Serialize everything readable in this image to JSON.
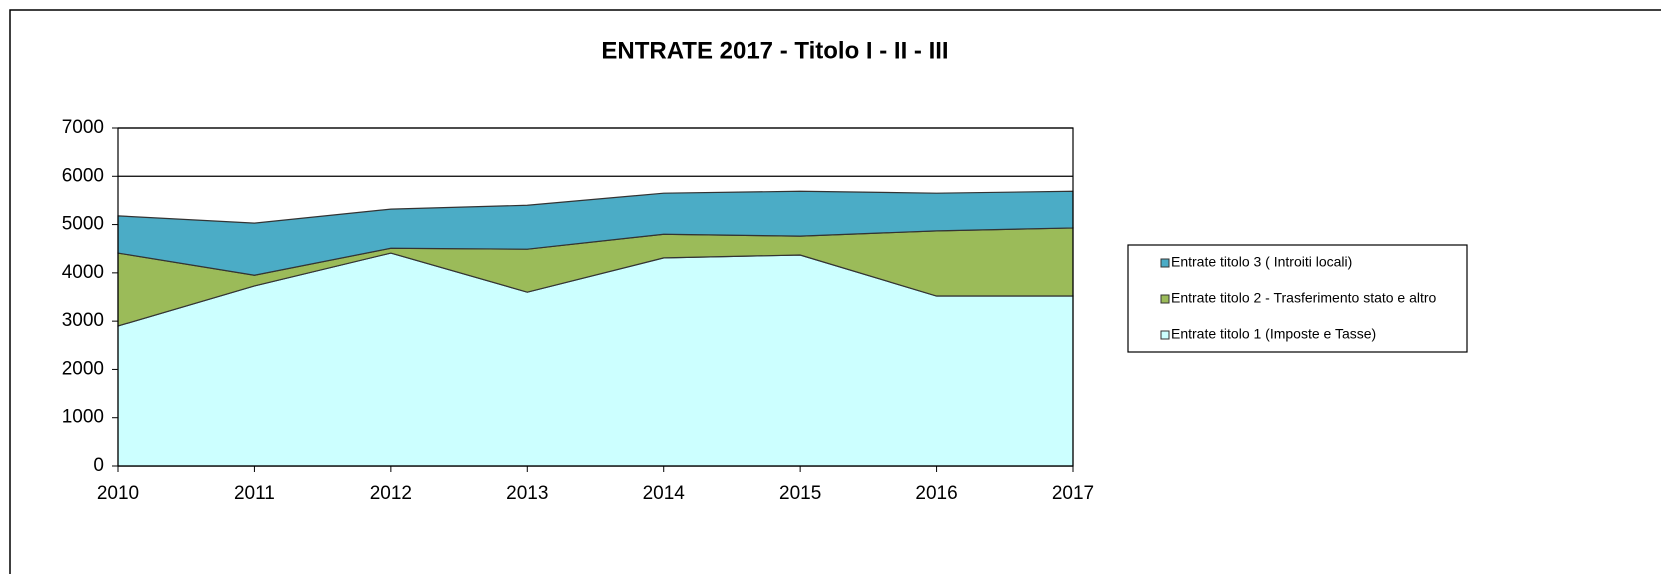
{
  "chart_data": {
    "type": "stacked-area",
    "title": "ENTRATE 2017 - Titolo I - II - III",
    "x": [
      2010,
      2011,
      2012,
      2013,
      2014,
      2015,
      2016,
      2017
    ],
    "xlim": [
      2010,
      2017
    ],
    "xticks": [
      2010,
      2011,
      2012,
      2013,
      2014,
      2015,
      2016,
      2017
    ],
    "ylim": [
      0,
      7000
    ],
    "yticks": [
      0,
      1000,
      2000,
      3000,
      4000,
      5000,
      6000,
      7000
    ],
    "grid": true,
    "legend": "right",
    "series": [
      {
        "name": "Entrate titolo 1 (Imposte e Tasse)",
        "color": "#ccffff",
        "values": [
          2900,
          3730,
          4410,
          3600,
          4310,
          4370,
          3520,
          3520
        ]
      },
      {
        "name": "Entrate titolo 2 - Trasferimento stato e altro",
        "color": "#9bbb59",
        "values": [
          1510,
          220,
          100,
          890,
          490,
          390,
          1350,
          1410
        ]
      },
      {
        "name": "Entrate titolo 3 ( Introiti locali)",
        "color": "#4bacc6",
        "values": [
          770,
          1080,
          810,
          910,
          850,
          930,
          780,
          760
        ]
      }
    ]
  }
}
